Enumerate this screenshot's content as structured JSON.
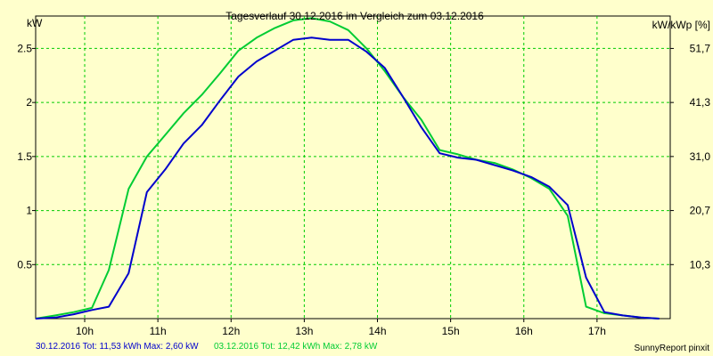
{
  "chart_data": {
    "type": "line",
    "title": "Tagesverlauf 30.12.2016 im Vergleich zum 03.12.2016",
    "ylabel_left": "kW",
    "ylabel_right": "kW/kWp [%]",
    "x_ticks": [
      "10h",
      "11h",
      "12h",
      "13h",
      "14h",
      "15h",
      "16h",
      "17h"
    ],
    "x_tick_values": [
      10,
      11,
      12,
      13,
      14,
      15,
      16,
      17
    ],
    "xlim": [
      9.33,
      18.0
    ],
    "y_ticks": [
      "0.5",
      "1",
      "1.5",
      "2",
      "2.5"
    ],
    "y_tick_values": [
      0.5,
      1,
      1.5,
      2,
      2.5
    ],
    "ylim": [
      0,
      2.8
    ],
    "y2_ticks": [
      "10,3",
      "20,7",
      "31,0",
      "41,3",
      "51,7"
    ],
    "grid": true,
    "series": [
      {
        "name": "30.12.2016",
        "color": "#0000cc",
        "x": [
          9.33,
          9.6,
          9.85,
          10.1,
          10.33,
          10.6,
          10.85,
          11.1,
          11.35,
          11.6,
          11.85,
          12.1,
          12.35,
          12.6,
          12.85,
          13.1,
          13.35,
          13.6,
          13.85,
          14.1,
          14.35,
          14.6,
          14.85,
          15.1,
          15.35,
          15.6,
          15.85,
          16.1,
          16.35,
          16.6,
          16.85,
          17.1,
          17.35,
          17.6,
          17.85
        ],
        "y": [
          0,
          0.01,
          0.04,
          0.08,
          0.11,
          0.42,
          1.17,
          1.38,
          1.62,
          1.79,
          2.02,
          2.24,
          2.38,
          2.48,
          2.58,
          2.6,
          2.58,
          2.58,
          2.47,
          2.32,
          2.05,
          1.77,
          1.53,
          1.49,
          1.47,
          1.42,
          1.37,
          1.31,
          1.22,
          1.05,
          0.38,
          0.06,
          0.03,
          0.01,
          0
        ]
      },
      {
        "name": "03.12.2016",
        "color": "#00cc33",
        "x": [
          9.33,
          9.6,
          9.85,
          10.1,
          10.33,
          10.6,
          10.85,
          11.1,
          11.35,
          11.6,
          11.85,
          12.1,
          12.35,
          12.6,
          12.85,
          13.1,
          13.35,
          13.6,
          13.85,
          14.1,
          14.35,
          14.6,
          14.85,
          15.1,
          15.35,
          15.6,
          15.85,
          16.1,
          16.35,
          16.6,
          16.85,
          17.1,
          17.35,
          17.6,
          17.85
        ],
        "y": [
          0,
          0.03,
          0.06,
          0.1,
          0.45,
          1.2,
          1.5,
          1.7,
          1.9,
          2.07,
          2.27,
          2.48,
          2.6,
          2.69,
          2.76,
          2.78,
          2.75,
          2.67,
          2.5,
          2.29,
          2.05,
          1.84,
          1.56,
          1.52,
          1.47,
          1.44,
          1.38,
          1.3,
          1.2,
          0.95,
          0.11,
          0.05,
          0.03,
          0.01,
          0
        ]
      }
    ]
  },
  "footer": {
    "series1_text": "30.12.2016 Tot: 11,53 kWh Max: 2,60 kW",
    "series2_text": "03.12.2016 Tot: 12,42 kWh Max: 2,78 kW",
    "credit": "SunnyReport pinxit"
  }
}
